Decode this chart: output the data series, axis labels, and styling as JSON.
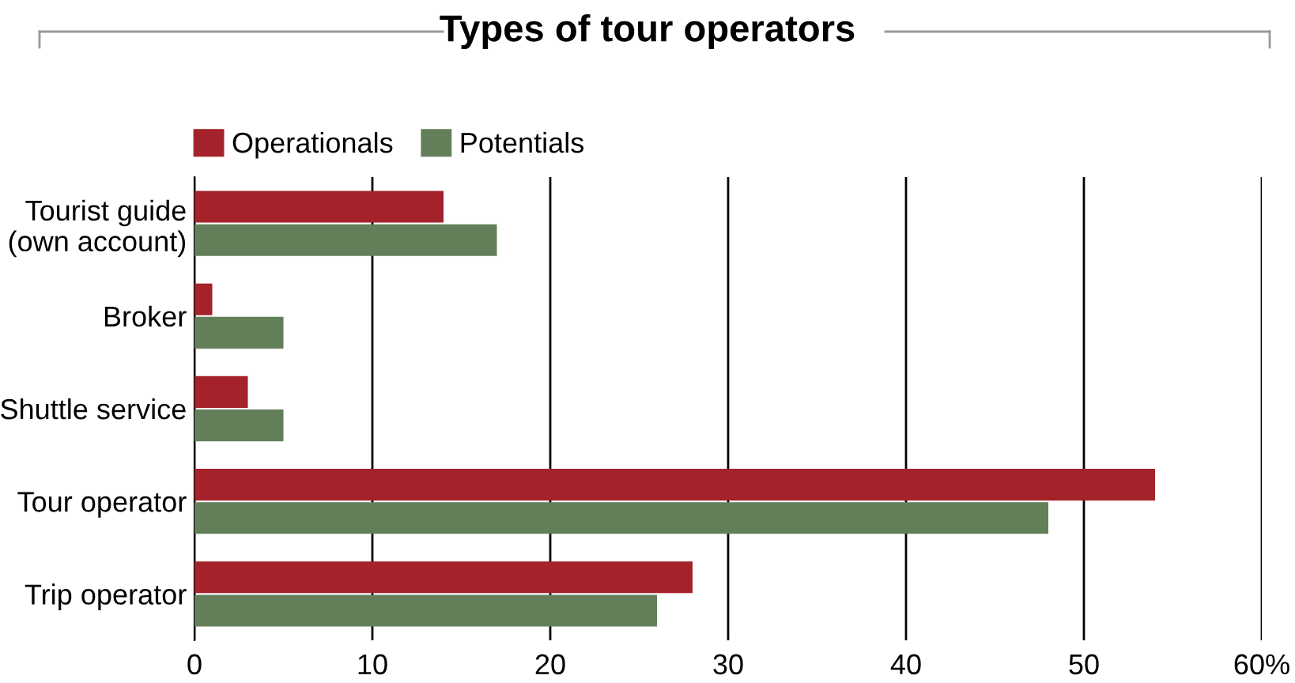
{
  "chart_data": {
    "type": "bar",
    "orientation": "horizontal",
    "title": "Types of tour operators",
    "categories": [
      "Tourist guide\n(own account)",
      "Broker",
      "Shuttle service",
      "Tour operator",
      "Trip operator"
    ],
    "series": [
      {
        "name": "Operationals",
        "color": "#a4232a",
        "values": [
          14,
          1,
          3,
          54,
          28
        ]
      },
      {
        "name": "Potentials",
        "color": "#637f5a",
        "values": [
          17,
          5,
          5,
          48,
          26
        ]
      }
    ],
    "xlim": [
      0,
      60
    ],
    "xticks": [
      0,
      10,
      20,
      30,
      40,
      50,
      {
        "value": 60,
        "label": "60%"
      }
    ],
    "grid": "x",
    "legend": "top left"
  }
}
